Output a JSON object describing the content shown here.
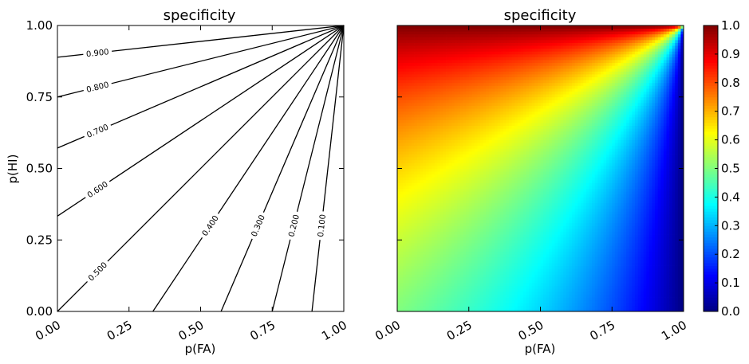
{
  "chart_data": [
    {
      "type": "contour",
      "title": "specificity",
      "xlabel": "p(FA)",
      "ylabel": "p(HI)",
      "xlim": [
        0,
        1
      ],
      "ylim": [
        0,
        1
      ],
      "xticks": [
        "0.00",
        "0.25",
        "0.50",
        "0.75",
        "1.00"
      ],
      "yticks": [
        "0.00",
        "0.25",
        "0.50",
        "0.75",
        "1.00"
      ],
      "function": "specificity = (1 - p(FA)) / ((1 - p(FA)) + (1 - p(HI)))",
      "levels": [
        0.1,
        0.2,
        0.3,
        0.4,
        0.5,
        0.6,
        0.7,
        0.8,
        0.9
      ],
      "level_labels": [
        "0.100",
        "0.200",
        "0.300",
        "0.400",
        "0.500",
        "0.600",
        "0.700",
        "0.800",
        "0.900"
      ],
      "line_color": "#000000",
      "grid": false
    },
    {
      "type": "heatmap",
      "title": "specificity",
      "xlabel": "p(FA)",
      "xlim": [
        0,
        1
      ],
      "ylim": [
        0,
        1
      ],
      "xticks": [
        "0.00",
        "0.25",
        "0.50",
        "0.75",
        "1.00"
      ],
      "function": "specificity = (1 - p(FA)) / ((1 - p(FA)) + (1 - p(HI)))",
      "resolution": 100,
      "colormap": "jet",
      "colorbar": {
        "range": [
          0,
          1
        ],
        "ticks": [
          "0.0",
          "0.1",
          "0.2",
          "0.3",
          "0.4",
          "0.5",
          "0.6",
          "0.7",
          "0.8",
          "0.9",
          "1.0"
        ]
      },
      "grid": false
    }
  ]
}
